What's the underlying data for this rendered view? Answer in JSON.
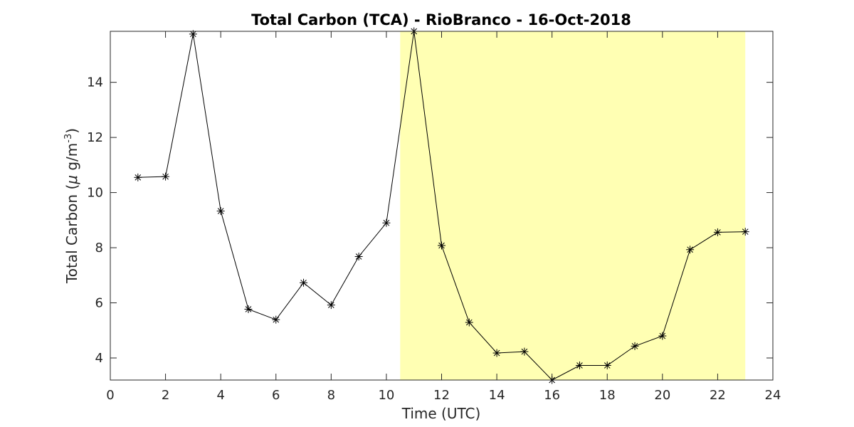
{
  "chart_data": {
    "type": "line",
    "title": "Total Carbon (TCA) - RioBranco - 16-Oct-2018",
    "xlabel": "Time (UTC)",
    "ylabel": {
      "prefix": "Total Carbon (",
      "mu": "μ",
      "unit": " g/m",
      "exponent": "-3",
      "suffix": ")"
    },
    "xlim": [
      0,
      24
    ],
    "ylim": [
      3.2,
      15.85
    ],
    "xticks": [
      "0",
      "2",
      "4",
      "6",
      "8",
      "10",
      "12",
      "14",
      "16",
      "18",
      "20",
      "22",
      "24"
    ],
    "yticks": [
      "4",
      "6",
      "8",
      "10",
      "12",
      "14"
    ],
    "shaded_region": {
      "x_start": 10.5,
      "x_end": 23,
      "color": "#ffffb3"
    },
    "grid": false,
    "series": [
      {
        "marker": "asterisk",
        "color": "#000000",
        "x": [
          1,
          2,
          3,
          4,
          5,
          6,
          7,
          8,
          9,
          10,
          11,
          12,
          13,
          14,
          15,
          16,
          17,
          18,
          19,
          20,
          21,
          22,
          23
        ],
        "y": [
          10.55,
          10.58,
          15.75,
          9.33,
          5.77,
          5.39,
          6.73,
          5.92,
          7.68,
          8.9,
          15.85,
          8.08,
          5.29,
          4.18,
          4.23,
          3.2,
          3.73,
          3.73,
          4.43,
          4.8,
          7.93,
          8.56,
          8.58
        ]
      }
    ]
  }
}
